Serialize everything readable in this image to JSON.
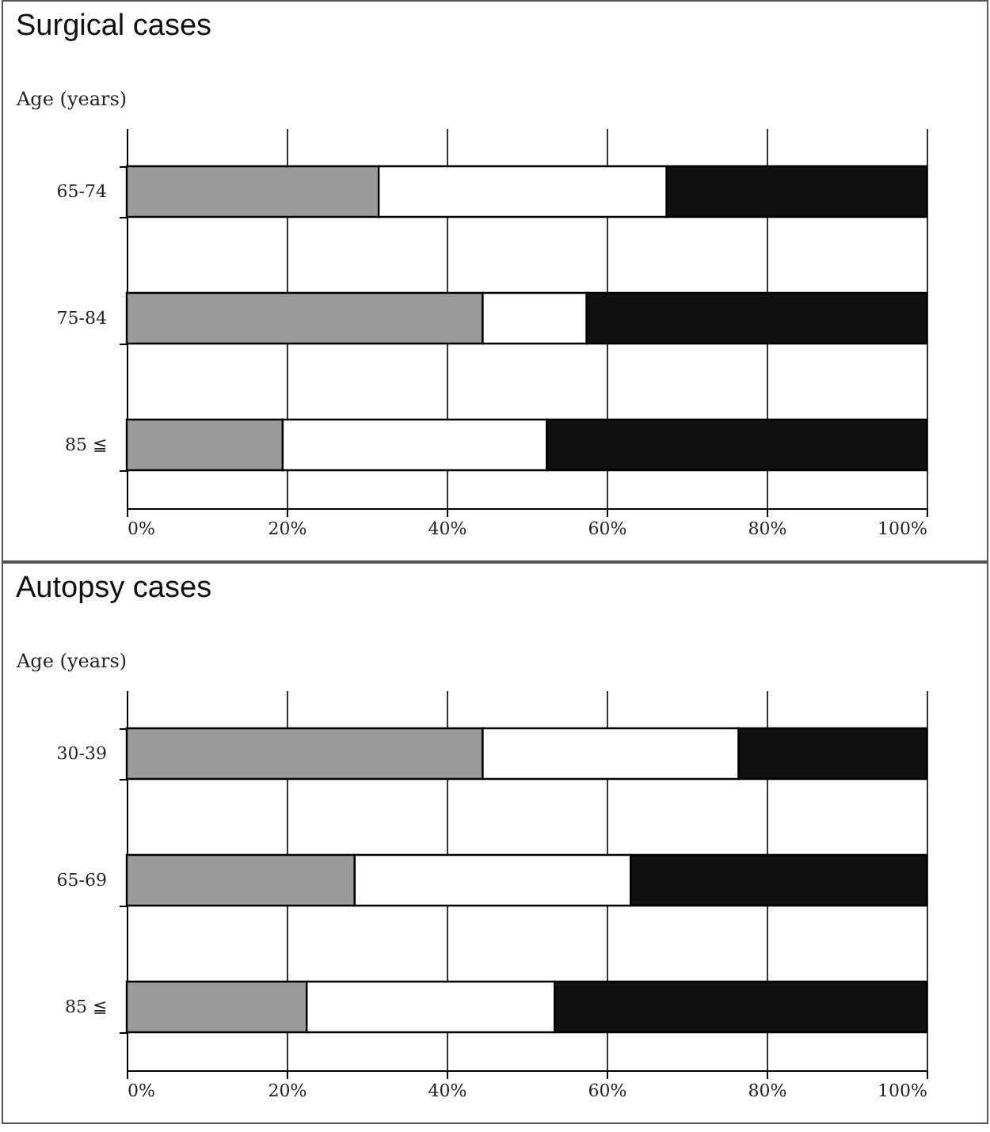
{
  "chart_data": [
    {
      "type": "bar",
      "title": "Surgical cases",
      "ylabel": "Age (years)",
      "orientation": "horizontal",
      "stacked": true,
      "grid": "x",
      "categories": [
        "65-74",
        "75-84",
        "85 ≦"
      ],
      "series": [
        {
          "color": "#9a9a9a",
          "values": [
            31.5,
            44.5,
            19.5
          ]
        },
        {
          "color": "#ffffff",
          "values": [
            36,
            13,
            33
          ]
        },
        {
          "color": "#111111",
          "values": [
            32.5,
            42.5,
            47.5
          ]
        }
      ],
      "xlim": [
        0,
        100
      ],
      "xticks": [
        {
          "value": 0,
          "label": "0%"
        },
        {
          "value": 20,
          "label": "20%"
        },
        {
          "value": 40,
          "label": "40%"
        },
        {
          "value": 60,
          "label": "60%"
        },
        {
          "value": 80,
          "label": "80%"
        },
        {
          "value": 100,
          "label": "100%"
        }
      ]
    },
    {
      "type": "bar",
      "title": "Autopsy cases",
      "ylabel": "Age (years)",
      "orientation": "horizontal",
      "stacked": true,
      "grid": "x",
      "categories": [
        "30-39",
        "65-69",
        "85 ≦"
      ],
      "series": [
        {
          "color": "#9a9a9a",
          "values": [
            44.5,
            28.5,
            22.5
          ]
        },
        {
          "color": "#ffffff",
          "values": [
            32,
            34.5,
            31
          ]
        },
        {
          "color": "#111111",
          "values": [
            23.5,
            37,
            46.5
          ]
        }
      ],
      "xlim": [
        0,
        100
      ],
      "xticks": [
        {
          "value": 0,
          "label": "0%"
        },
        {
          "value": 20,
          "label": "20%"
        },
        {
          "value": 40,
          "label": "40%"
        },
        {
          "value": 60,
          "label": "60%"
        },
        {
          "value": 80,
          "label": "80%"
        },
        {
          "value": 100,
          "label": "100%"
        }
      ]
    }
  ]
}
